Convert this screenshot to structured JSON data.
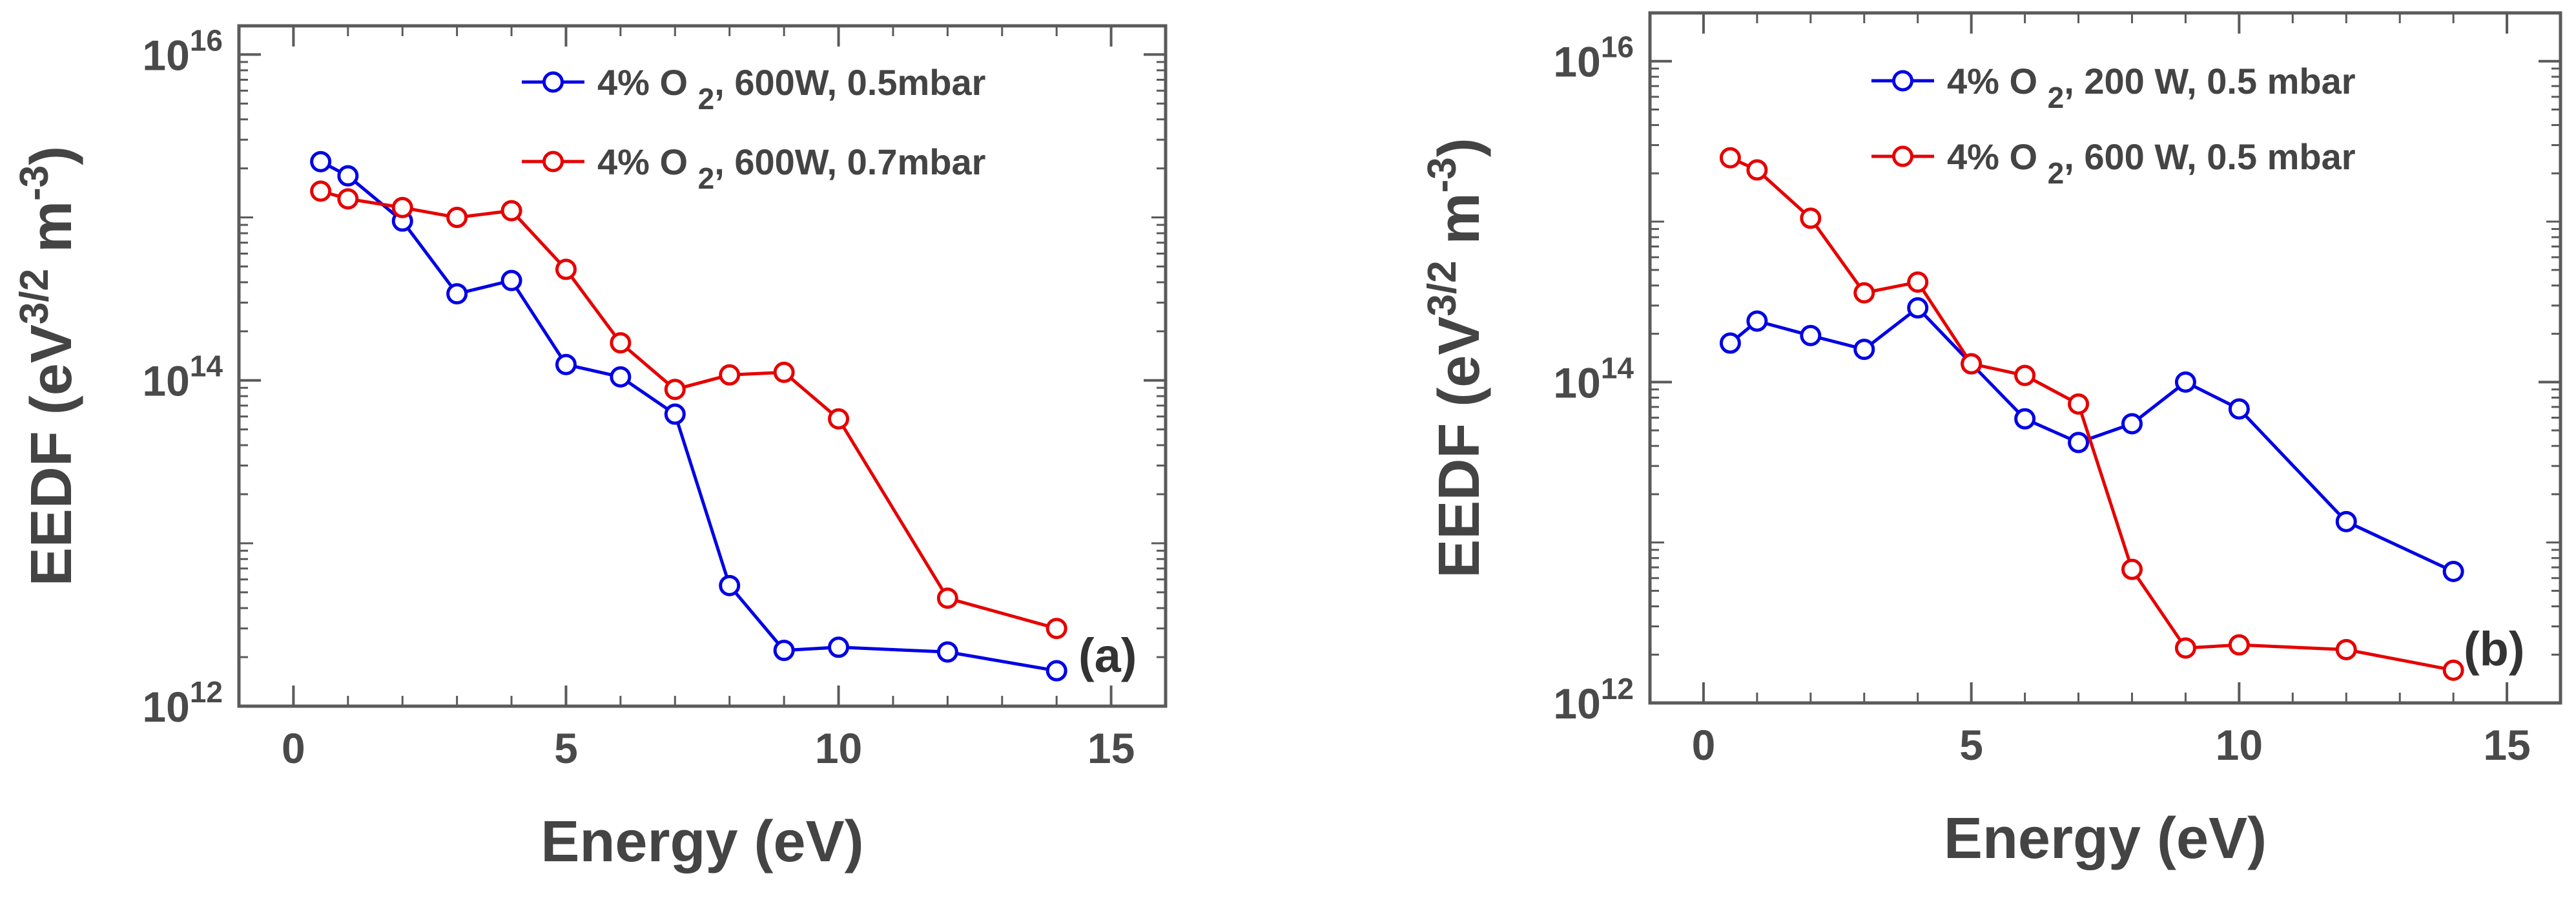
{
  "chart_data": [
    {
      "type": "line",
      "panel_label": "(a)",
      "xlabel": "Energy (eV)",
      "ylabel": {
        "main": "EEDF (eV",
        "sup1": "3/2",
        "mid": " m",
        "sup2": "-3",
        "end": ")"
      },
      "xlim": [
        -1,
        16
      ],
      "ylim": [
        1000000000000.0,
        1.5e+16
      ],
      "yscale": "log",
      "xticks": [
        0,
        5,
        10,
        15
      ],
      "yticks": [
        {
          "value": 1000000000000.0,
          "base": "10",
          "exp": "12"
        },
        {
          "value": 100000000000000.0,
          "base": "10",
          "exp": "14"
        },
        {
          "value": 1e+16,
          "base": "10",
          "exp": "16"
        }
      ],
      "legend_position": "top-right",
      "series": [
        {
          "name": "4% O 2, 600W, 0.5mbar",
          "legend": {
            "pre": "4% O ",
            "sub": "2",
            "post": ", 600W, 0.5mbar"
          },
          "color": "#0000e6",
          "x": [
            0.5,
            1,
            2,
            3,
            4,
            5,
            6,
            7,
            8,
            9,
            10,
            12,
            14
          ],
          "y": [
            2200000000000000.0,
            1800000000000000.0,
            950000000000000.0,
            340000000000000.0,
            410000000000000.0,
            125000000000000.0,
            105000000000000.0,
            62000000000000.0,
            5500000000000.0,
            2200000000000.0,
            2300000000000.0,
            2150000000000.0,
            1650000000000.0
          ]
        },
        {
          "name": "4% O 2, 600W, 0.7mbar",
          "legend": {
            "pre": "4% O ",
            "sub": "2",
            "post": ", 600W, 0.7mbar"
          },
          "color": "#e60000",
          "x": [
            0.5,
            1,
            2,
            3,
            4,
            5,
            6,
            7,
            8,
            9,
            10,
            12,
            14
          ],
          "y": [
            1450000000000000.0,
            1300000000000000.0,
            1150000000000000.0,
            1000000000000000.0,
            1100000000000000.0,
            480000000000000.0,
            170000000000000.0,
            88000000000000.0,
            108000000000000.0,
            112000000000000.0,
            58000000000000.0,
            4600000000000.0,
            3000000000000.0
          ]
        }
      ]
    },
    {
      "type": "line",
      "panel_label": "(b)",
      "xlabel": "Energy (eV)",
      "ylabel": {
        "main": "EEDF (eV",
        "sup1": "3/2",
        "mid": " m",
        "sup2": "-3",
        "end": ")"
      },
      "xlim": [
        -1,
        16
      ],
      "ylim": [
        1000000000000.0,
        2e+16
      ],
      "yscale": "log",
      "xticks": [
        0,
        5,
        10,
        15
      ],
      "yticks": [
        {
          "value": 1000000000000.0,
          "base": "10",
          "exp": "12"
        },
        {
          "value": 100000000000000.0,
          "base": "10",
          "exp": "14"
        },
        {
          "value": 1e+16,
          "base": "10",
          "exp": "16"
        }
      ],
      "legend_position": "top-right",
      "series": [
        {
          "name": "4% O 2, 200 W, 0.5 mbar",
          "legend": {
            "pre": "4% O ",
            "sub": "2",
            "post": ", 200 W, 0.5 mbar"
          },
          "color": "#0000e6",
          "x": [
            0.5,
            1,
            2,
            3,
            4,
            5,
            6,
            7,
            8,
            9,
            10,
            12,
            14
          ],
          "y": [
            175000000000000.0,
            240000000000000.0,
            195000000000000.0,
            160000000000000.0,
            290000000000000.0,
            130000000000000.0,
            59000000000000.0,
            42000000000000.0,
            55000000000000.0,
            100000000000000.0,
            68000000000000.0,
            13500000000000.0,
            6600000000000.0
          ]
        },
        {
          "name": "4% O 2, 600 W, 0.5 mbar",
          "legend": {
            "pre": "4% O ",
            "sub": "2",
            "post": ", 600 W, 0.5 mbar"
          },
          "color": "#e60000",
          "x": [
            0.5,
            1,
            2,
            3,
            4,
            5,
            6,
            7,
            8,
            9,
            10,
            12,
            14
          ],
          "y": [
            2500000000000000.0,
            2100000000000000.0,
            1050000000000000.0,
            360000000000000.0,
            420000000000000.0,
            130000000000000.0,
            110000000000000.0,
            73000000000000.0,
            6800000000000.0,
            2200000000000.0,
            2300000000000.0,
            2150000000000.0,
            1600000000000.0
          ]
        }
      ]
    }
  ]
}
